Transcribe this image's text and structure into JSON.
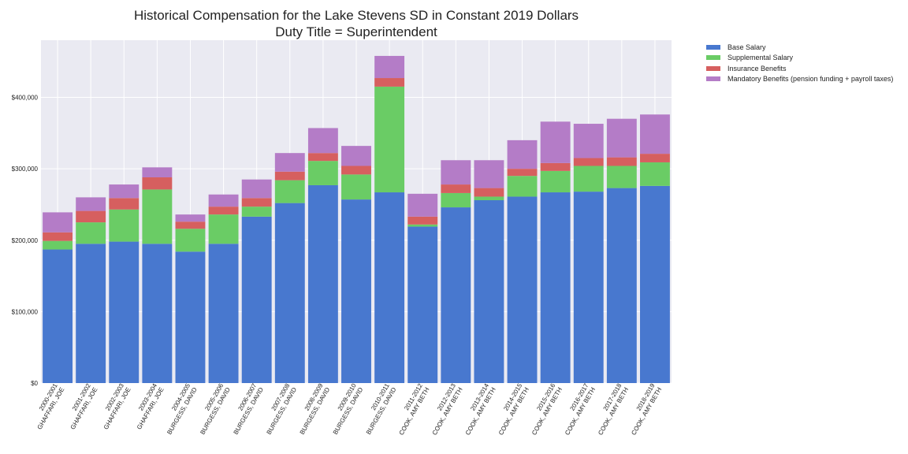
{
  "chart_data": {
    "type": "bar",
    "stacked": true,
    "title": [
      "Historical Compensation for the Lake Stevens SD in Constant 2019 Dollars",
      "Duty Title = Superintendent"
    ],
    "xlabel": "",
    "ylabel": "",
    "ylim": [
      0,
      480000
    ],
    "yticks": [
      0,
      100000,
      200000,
      300000,
      400000
    ],
    "ytick_labels": [
      "$0",
      "$100,000",
      "$200,000",
      "$300,000",
      "$400,000"
    ],
    "grid": true,
    "legend_position": "outside-top-right",
    "categories": [
      [
        "2000-2001",
        "GHAFFARI, JOE"
      ],
      [
        "2001-2002",
        "GHAFFARI, JOE"
      ],
      [
        "2002-2003",
        "GHAFFARI, JOE"
      ],
      [
        "2003-2004",
        "GHAFFARI, JOE"
      ],
      [
        "2004-2005",
        "BURGESS, DAVID"
      ],
      [
        "2005-2006",
        "BURGESS, DAVID"
      ],
      [
        "2006-2007",
        "BURGESS, DAVID"
      ],
      [
        "2007-2008",
        "BURGESS, DAVID"
      ],
      [
        "2008-2009",
        "BURGESS, DAVID"
      ],
      [
        "2009-2010",
        "BURGESS, DAVID"
      ],
      [
        "2010-2011",
        "BURGESS, DAVID"
      ],
      [
        "2011-2012",
        "COOK, AMY BETH"
      ],
      [
        "2012-2013",
        "COOK, AMY BETH"
      ],
      [
        "2013-2014",
        "COOK, AMY BETH"
      ],
      [
        "2014-2015",
        "COOK, AMY BETH"
      ],
      [
        "2015-2016",
        "COOK, AMY BETH"
      ],
      [
        "2016-2017",
        "COOK, AMY BETH"
      ],
      [
        "2017-2018",
        "COOK, AMY BETH"
      ],
      [
        "2018-2019",
        "COOK, AMY BETH"
      ]
    ],
    "series": [
      {
        "name": "Base Salary",
        "color": "#4878cf",
        "values": [
          187000,
          195000,
          198000,
          195000,
          184000,
          195000,
          233000,
          252000,
          277000,
          257000,
          267000,
          219000,
          246000,
          256000,
          261000,
          267000,
          268000,
          273000,
          276000
        ]
      },
      {
        "name": "Supplemental Salary",
        "color": "#6acc65",
        "values": [
          12000,
          30000,
          45000,
          76000,
          32000,
          41000,
          14000,
          32000,
          34000,
          35000,
          148000,
          3000,
          20000,
          5000,
          29000,
          30000,
          36000,
          31000,
          33000
        ]
      },
      {
        "name": "Insurance Benefits",
        "color": "#d65f5f",
        "values": [
          12000,
          16000,
          16000,
          17000,
          10000,
          11000,
          12000,
          12000,
          11000,
          12000,
          12000,
          11000,
          12000,
          12000,
          10000,
          11000,
          11000,
          12000,
          12000
        ]
      },
      {
        "name": "Mandatory Benefits (pension funding + payroll taxes)",
        "color": "#b47cc7",
        "values": [
          28000,
          19000,
          19000,
          14000,
          10000,
          17000,
          26000,
          26000,
          35000,
          28000,
          31000,
          32000,
          34000,
          39000,
          40000,
          58000,
          48000,
          54000,
          55000
        ]
      }
    ]
  }
}
